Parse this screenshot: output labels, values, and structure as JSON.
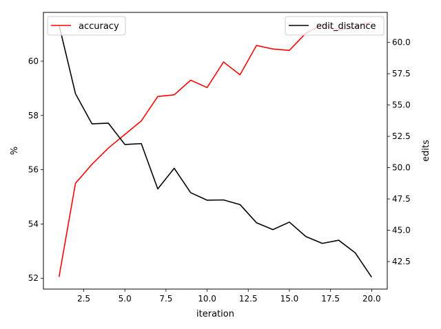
{
  "chart_data": {
    "type": "line",
    "xlabel": "iteration",
    "ylabel_left": "%",
    "ylabel_right": "edits",
    "x": [
      1,
      2,
      3,
      4,
      5,
      6,
      7,
      8,
      9,
      10,
      11,
      12,
      13,
      14,
      15,
      16,
      17,
      18,
      19,
      20
    ],
    "xlim": [
      0.05,
      20.95
    ],
    "ylim_left": [
      51.6,
      61.8
    ],
    "ylim_right": [
      40.3,
      62.4
    ],
    "x_ticks": [
      2.5,
      5.0,
      7.5,
      10.0,
      12.5,
      15.0,
      17.5,
      20.0
    ],
    "x_tick_labels": [
      "2.5",
      "5.0",
      "7.5",
      "10.0",
      "12.5",
      "15.0",
      "17.5",
      "20.0"
    ],
    "y_left_ticks": [
      52,
      54,
      56,
      58,
      60
    ],
    "y_left_tick_labels": [
      "52",
      "54",
      "56",
      "58",
      "60"
    ],
    "y_right_ticks": [
      42.5,
      45.0,
      47.5,
      50.0,
      52.5,
      55.0,
      57.5,
      60.0
    ],
    "y_right_tick_labels": [
      "42.5",
      "45.0",
      "47.5",
      "50.0",
      "52.5",
      "55.0",
      "57.5",
      "60.0"
    ],
    "grid": false,
    "series": [
      {
        "name": "accuracy",
        "axis": "left",
        "color": "#ff0000",
        "values": [
          52.05,
          55.5,
          56.2,
          56.8,
          57.3,
          57.8,
          58.7,
          58.76,
          59.3,
          59.03,
          59.97,
          59.5,
          60.58,
          60.45,
          60.4,
          61.03,
          61.35,
          61.15,
          61.25,
          61.45
        ],
        "legend_position": "upper left"
      },
      {
        "name": "edit_distance",
        "axis": "right",
        "color": "#000000",
        "values": [
          61.4,
          55.9,
          53.5,
          53.55,
          51.85,
          51.92,
          48.3,
          49.95,
          48.0,
          47.4,
          47.42,
          47.05,
          45.6,
          45.05,
          45.65,
          44.5,
          43.95,
          44.2,
          43.2,
          41.25
        ],
        "legend_position": "upper right"
      }
    ]
  }
}
